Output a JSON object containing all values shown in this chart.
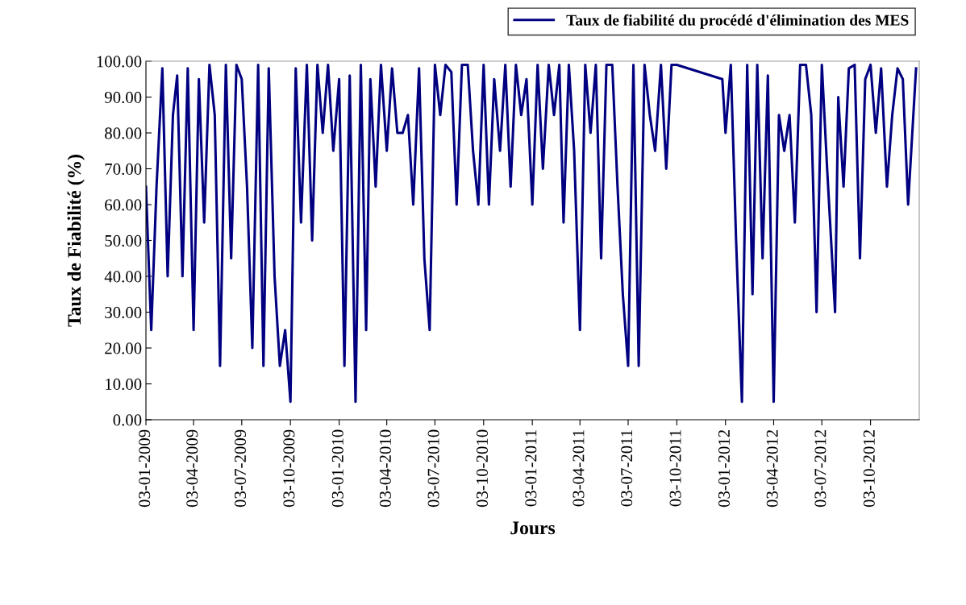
{
  "chart_data": {
    "type": "line",
    "xlabel": "Jours",
    "ylabel": "Taux de Fiabilité (%)",
    "legend": "top right",
    "grid": false,
    "marker": "none",
    "line_style": "solid",
    "xlim": [
      "2009-01-03",
      "2013-01-03"
    ],
    "xticks": [
      {
        "value": "2009-01-03",
        "label": "03-01-2009"
      },
      {
        "value": "2009-04-03",
        "label": "03-04-2009"
      },
      {
        "value": "2009-07-03",
        "label": "03-07-2009"
      },
      {
        "value": "2009-10-03",
        "label": "03-10-2009"
      },
      {
        "value": "2010-01-03",
        "label": "03-01-2010"
      },
      {
        "value": "2010-04-03",
        "label": "03-04-2010"
      },
      {
        "value": "2010-07-03",
        "label": "03-07-2010"
      },
      {
        "value": "2010-10-03",
        "label": "03-10-2010"
      },
      {
        "value": "2011-01-03",
        "label": "03-01-2011"
      },
      {
        "value": "2011-04-03",
        "label": "03-04-2011"
      },
      {
        "value": "2011-07-03",
        "label": "03-07-2011"
      },
      {
        "value": "2011-10-03",
        "label": "03-10-2011"
      },
      {
        "value": "2012-01-03",
        "label": "03-01-2012"
      },
      {
        "value": "2012-04-03",
        "label": "03-04-2012"
      },
      {
        "value": "2012-07-03",
        "label": "03-07-2012"
      },
      {
        "value": "2012-10-03",
        "label": "03-10-2012"
      }
    ],
    "ylim": [
      0,
      100
    ],
    "yticks": [
      {
        "value": 0,
        "label": "0.00"
      },
      {
        "value": 10,
        "label": "10.00"
      },
      {
        "value": 20,
        "label": "20.00"
      },
      {
        "value": 30,
        "label": "30.00"
      },
      {
        "value": 40,
        "label": "40.00"
      },
      {
        "value": 50,
        "label": "50.00"
      },
      {
        "value": 60,
        "label": "60.00"
      },
      {
        "value": 70,
        "label": "70.00"
      },
      {
        "value": 80,
        "label": "80.00"
      },
      {
        "value": 90,
        "label": "90.00"
      },
      {
        "value": 100,
        "label": "100.00"
      }
    ],
    "x": [
      "2009-01-03",
      "2009-01-13",
      "2009-01-23",
      "2009-02-03",
      "2009-02-13",
      "2009-02-23",
      "2009-03-03",
      "2009-03-13",
      "2009-03-23",
      "2009-04-03",
      "2009-04-13",
      "2009-04-23",
      "2009-05-03",
      "2009-05-13",
      "2009-05-23",
      "2009-06-03",
      "2009-06-13",
      "2009-06-23",
      "2009-07-03",
      "2009-07-13",
      "2009-07-23",
      "2009-08-03",
      "2009-08-13",
      "2009-08-23",
      "2009-09-03",
      "2009-09-13",
      "2009-09-23",
      "2009-10-03",
      "2009-10-13",
      "2009-10-23",
      "2009-11-03",
      "2009-11-13",
      "2009-11-23",
      "2009-12-03",
      "2009-12-13",
      "2009-12-23",
      "2010-01-03",
      "2010-01-13",
      "2010-01-23",
      "2010-02-03",
      "2010-02-13",
      "2010-02-23",
      "2010-03-03",
      "2010-03-13",
      "2010-03-23",
      "2010-04-03",
      "2010-04-13",
      "2010-04-23",
      "2010-05-03",
      "2010-05-13",
      "2010-05-23",
      "2010-06-03",
      "2010-06-13",
      "2010-06-23",
      "2010-07-03",
      "2010-07-13",
      "2010-07-23",
      "2010-08-03",
      "2010-08-13",
      "2010-08-23",
      "2010-09-03",
      "2010-09-13",
      "2010-09-23",
      "2010-10-03",
      "2010-10-13",
      "2010-10-23",
      "2010-11-03",
      "2010-11-13",
      "2010-11-23",
      "2010-12-03",
      "2010-12-13",
      "2010-12-23",
      "2011-01-03",
      "2011-01-13",
      "2011-01-23",
      "2011-02-03",
      "2011-02-13",
      "2011-02-23",
      "2011-03-03",
      "2011-03-13",
      "2011-03-23",
      "2011-04-03",
      "2011-04-13",
      "2011-04-23",
      "2011-05-03",
      "2011-05-13",
      "2011-05-23",
      "2011-06-03",
      "2011-06-13",
      "2011-06-23",
      "2011-07-03",
      "2011-07-13",
      "2011-07-23",
      "2011-08-03",
      "2011-08-13",
      "2011-08-23",
      "2011-09-03",
      "2011-09-13",
      "2011-09-23",
      "2011-10-03",
      "2011-12-28",
      "2012-01-03",
      "2012-01-13",
      "2012-01-23",
      "2012-02-03",
      "2012-02-13",
      "2012-02-23",
      "2012-03-03",
      "2012-03-13",
      "2012-03-23",
      "2012-04-03",
      "2012-04-13",
      "2012-04-23",
      "2012-05-03",
      "2012-05-13",
      "2012-05-23",
      "2012-06-03",
      "2012-06-13",
      "2012-06-23",
      "2012-07-03",
      "2012-07-13",
      "2012-07-28",
      "2012-08-03",
      "2012-08-13",
      "2012-08-23",
      "2012-09-03",
      "2012-09-13",
      "2012-09-23",
      "2012-10-03",
      "2012-10-13",
      "2012-10-23",
      "2012-11-03",
      "2012-11-13",
      "2012-11-23",
      "2012-12-03",
      "2012-12-13",
      "2012-12-28"
    ],
    "series": [
      {
        "name": "Taux de fiabilité du procédé d'élimination des MES",
        "color": "#000080",
        "values": [
          65,
          25,
          65,
          98,
          40,
          85,
          96,
          40,
          98,
          25,
          95,
          55,
          99,
          85,
          15,
          99,
          45,
          99,
          95,
          65,
          20,
          99,
          15,
          98,
          40,
          15,
          25,
          5,
          98,
          55,
          99,
          50,
          99,
          80,
          99,
          75,
          95,
          15,
          96,
          5,
          99,
          25,
          95,
          65,
          99,
          75,
          98,
          80,
          80,
          85,
          60,
          98,
          45,
          25,
          99,
          85,
          99,
          97,
          60,
          99,
          99,
          75,
          60,
          99,
          60,
          95,
          75,
          99,
          65,
          99,
          85,
          95,
          60,
          99,
          70,
          99,
          85,
          99,
          55,
          99,
          75,
          25,
          99,
          80,
          99,
          45,
          99,
          99,
          65,
          35,
          15,
          99,
          15,
          99,
          85,
          75,
          99,
          70,
          99,
          99,
          95,
          80,
          99,
          50,
          5,
          99,
          35,
          99,
          45,
          96,
          5,
          85,
          75,
          85,
          55,
          99,
          99,
          85,
          30,
          99,
          70,
          30,
          90,
          65,
          98,
          99,
          45,
          95,
          99,
          80,
          98,
          65,
          85,
          98,
          95,
          60,
          98
        ]
      }
    ]
  }
}
